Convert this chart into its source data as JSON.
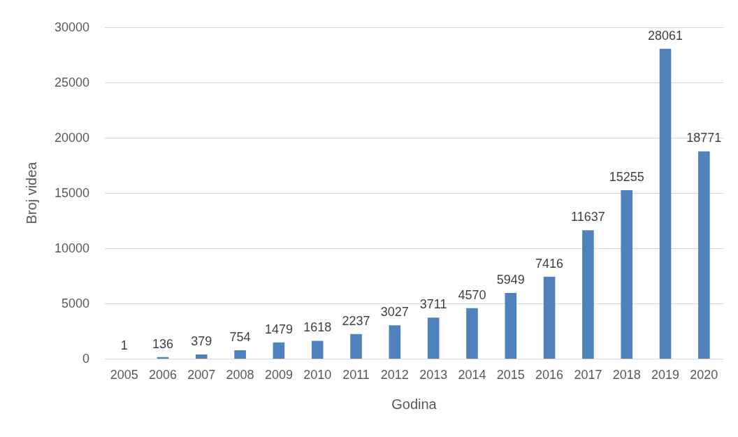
{
  "chart_data": {
    "type": "bar",
    "xlabel": "Godina",
    "ylabel": "Broj videa",
    "categories": [
      "2005",
      "2006",
      "2007",
      "2008",
      "2009",
      "2010",
      "2011",
      "2012",
      "2013",
      "2014",
      "2015",
      "2016",
      "2017",
      "2018",
      "2019",
      "2020"
    ],
    "values": [
      1,
      136,
      379,
      754,
      1479,
      1618,
      2237,
      3027,
      3711,
      4570,
      5949,
      7416,
      11637,
      15255,
      28061,
      18771
    ],
    "color": "#4f81bd",
    "ylim": [
      0,
      30000
    ],
    "yticks": [
      0,
      5000,
      10000,
      15000,
      20000,
      25000,
      30000
    ],
    "grid": "y",
    "data_labels": true
  }
}
